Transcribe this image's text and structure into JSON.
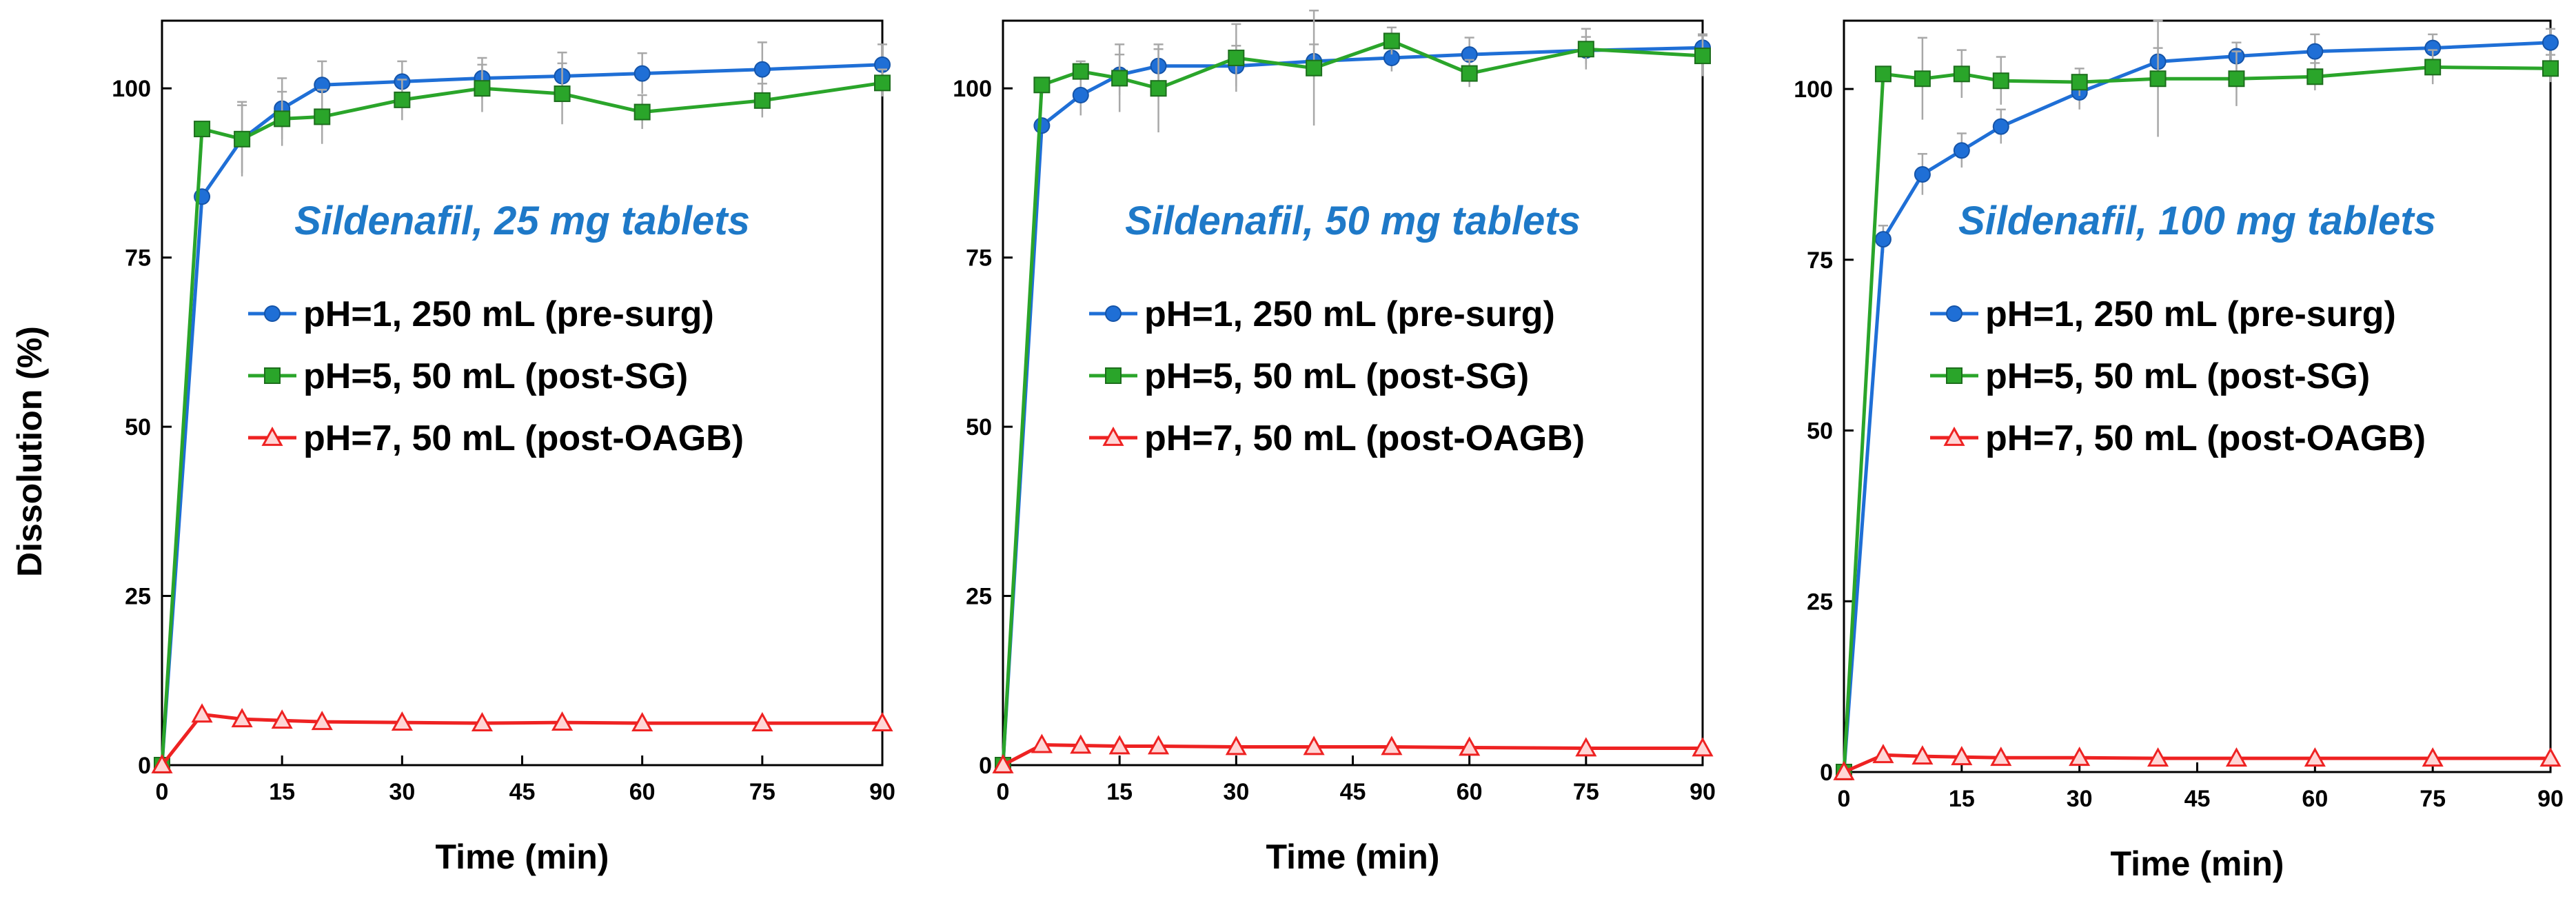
{
  "shared_ylabel": "Dissolution (%)",
  "chart_data": [
    {
      "type": "line",
      "title": "Sildenafil, 25 mg tablets",
      "xlabel": "Time (min)",
      "ylabel": "Dissolution (%)",
      "xlim": [
        0,
        90
      ],
      "ylim": [
        0,
        110
      ],
      "xticks": [
        0,
        15,
        30,
        45,
        60,
        75,
        90
      ],
      "yticks": [
        0,
        25,
        50,
        75,
        100
      ],
      "legend_position": "center",
      "series": [
        {
          "name": "pH=1, 250 mL (pre-surg)",
          "color": "#1f6fd6",
          "marker": "circle",
          "x": [
            0,
            5,
            10,
            15,
            20,
            30,
            40,
            50,
            60,
            75,
            90
          ],
          "values": [
            0,
            84,
            92.5,
            97,
            100.5,
            101,
            101.5,
            101.8,
            102.2,
            102.8,
            103.5
          ],
          "errors": [
            0,
            0,
            5.5,
            4.5,
            3.5,
            3,
            3,
            3.5,
            3,
            4,
            3
          ]
        },
        {
          "name": "pH=5, 50 mL (post-SG)",
          "color": "#2aa52a",
          "marker": "square",
          "x": [
            0,
            5,
            10,
            15,
            20,
            30,
            40,
            50,
            60,
            75,
            90
          ],
          "values": [
            0,
            94,
            92.5,
            95.5,
            95.8,
            98.3,
            100,
            99.2,
            96.5,
            98.2,
            100.8
          ],
          "errors": [
            0,
            0,
            5,
            4,
            4,
            3,
            3.5,
            4.5,
            2.5,
            2.5,
            2
          ]
        },
        {
          "name": "pH=7, 50 mL (post-OAGB)",
          "color": "#ee2222",
          "marker": "triangle",
          "x": [
            0,
            5,
            10,
            15,
            20,
            30,
            40,
            50,
            60,
            75,
            90
          ],
          "values": [
            0,
            7.5,
            6.8,
            6.6,
            6.4,
            6.3,
            6.2,
            6.3,
            6.2,
            6.2,
            6.2
          ],
          "errors": [
            0,
            0,
            0,
            0,
            0,
            0,
            0,
            0,
            0,
            0,
            0
          ]
        }
      ]
    },
    {
      "type": "line",
      "title": "Sildenafil, 50 mg tablets",
      "xlabel": "Time (min)",
      "ylabel": "",
      "xlim": [
        0,
        90
      ],
      "ylim": [
        0,
        110
      ],
      "xticks": [
        0,
        15,
        30,
        45,
        60,
        75,
        90
      ],
      "yticks": [
        0,
        25,
        50,
        75,
        100
      ],
      "legend_position": "center",
      "series": [
        {
          "name": "pH=1, 250 mL (pre-surg)",
          "color": "#1f6fd6",
          "marker": "circle",
          "x": [
            0,
            5,
            10,
            15,
            20,
            30,
            40,
            50,
            60,
            75,
            90
          ],
          "values": [
            0,
            94.5,
            99,
            102,
            103.3,
            103.3,
            104,
            104.5,
            105,
            105.6,
            106
          ],
          "errors": [
            0,
            0,
            3,
            3,
            2.5,
            3,
            2.5,
            2,
            2.5,
            2,
            2
          ]
        },
        {
          "name": "pH=5, 50 mL (post-SG)",
          "color": "#2aa52a",
          "marker": "square",
          "x": [
            0,
            5,
            10,
            15,
            20,
            30,
            40,
            50,
            60,
            75,
            90
          ],
          "values": [
            0,
            100.5,
            102.5,
            101.5,
            100,
            104.5,
            103,
            107,
            102.2,
            105.8,
            104.8
          ],
          "errors": [
            0,
            0,
            1.5,
            5,
            6.5,
            5,
            8.5,
            2,
            2,
            3,
            3
          ]
        },
        {
          "name": "pH=7, 50 mL (post-OAGB)",
          "color": "#ee2222",
          "marker": "triangle",
          "x": [
            0,
            5,
            10,
            15,
            20,
            30,
            40,
            50,
            60,
            75,
            90
          ],
          "values": [
            0,
            3,
            2.9,
            2.8,
            2.8,
            2.7,
            2.7,
            2.7,
            2.6,
            2.5,
            2.5
          ],
          "errors": [
            0,
            0,
            0,
            0,
            0,
            0,
            0,
            0,
            0,
            0,
            0
          ]
        }
      ]
    },
    {
      "type": "line",
      "title": "Sildenafil, 100 mg tablets",
      "xlabel": "Time (min)",
      "ylabel": "",
      "xlim": [
        0,
        90
      ],
      "ylim": [
        0,
        110
      ],
      "xticks": [
        0,
        15,
        30,
        45,
        60,
        75,
        90
      ],
      "yticks": [
        0,
        25,
        50,
        75,
        100
      ],
      "legend_position": "center",
      "series": [
        {
          "name": "pH=1, 250 mL (pre-surg)",
          "color": "#1f6fd6",
          "marker": "circle",
          "x": [
            0,
            5,
            10,
            15,
            20,
            30,
            40,
            50,
            60,
            75,
            90
          ],
          "values": [
            0,
            78,
            87.5,
            91,
            94.5,
            99.5,
            104,
            104.8,
            105.5,
            106,
            106.8
          ],
          "errors": [
            0,
            2,
            3,
            2.5,
            2.5,
            2.5,
            2,
            2,
            2.5,
            2,
            2
          ]
        },
        {
          "name": "pH=5, 50 mL (post-SG)",
          "color": "#2aa52a",
          "marker": "square",
          "x": [
            0,
            5,
            10,
            15,
            20,
            30,
            40,
            50,
            60,
            75,
            90
          ],
          "values": [
            0,
            102.2,
            101.5,
            102.2,
            101.2,
            101,
            101.5,
            101.5,
            101.8,
            103.2,
            103
          ],
          "errors": [
            0,
            0,
            6,
            3.5,
            3.5,
            2,
            8.5,
            4,
            2,
            2.5,
            2
          ]
        },
        {
          "name": "pH=7, 50 mL (post-OAGB)",
          "color": "#ee2222",
          "marker": "triangle",
          "x": [
            0,
            5,
            10,
            15,
            20,
            30,
            40,
            50,
            60,
            75,
            90
          ],
          "values": [
            0,
            2.5,
            2.3,
            2.2,
            2.1,
            2.1,
            2,
            2,
            2,
            2,
            2
          ],
          "errors": [
            0,
            0,
            0,
            0,
            0,
            0,
            0,
            0,
            0,
            0,
            0
          ]
        }
      ]
    }
  ]
}
